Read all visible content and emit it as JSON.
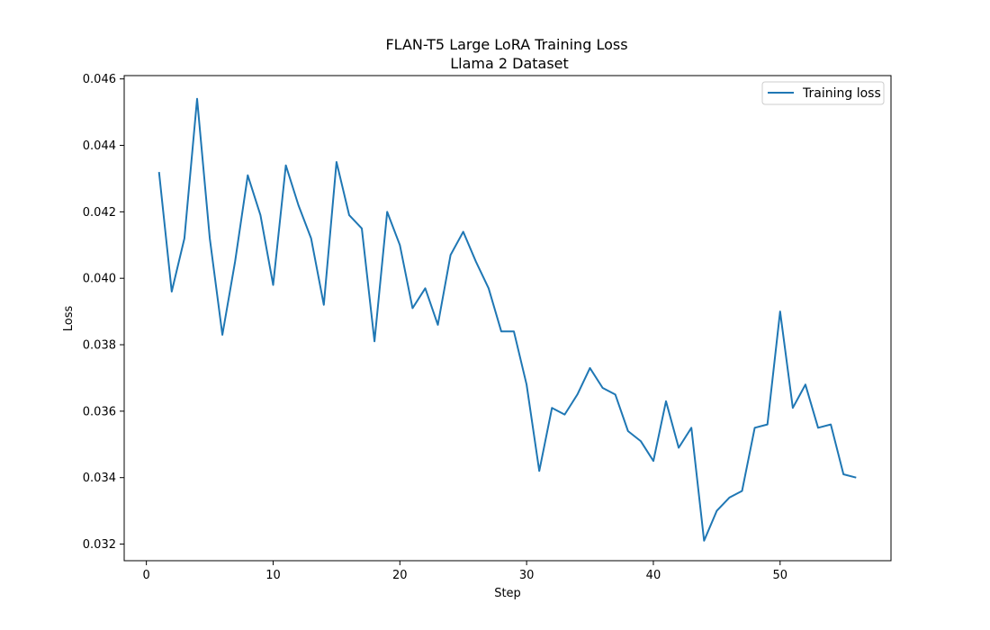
{
  "chart_data": {
    "type": "line",
    "title": "FLAN-T5 Large LoRA Training Loss",
    "subtitle": "Llama 2 Dataset",
    "xlabel": "Step",
    "ylabel": "Loss",
    "xlim": [
      -1.75,
      58.75
    ],
    "ylim": [
      0.0315,
      0.0461
    ],
    "x_ticks": [
      0,
      10,
      20,
      30,
      40,
      50
    ],
    "x_tick_labels": [
      "0",
      "10",
      "20",
      "30",
      "40",
      "50"
    ],
    "y_ticks": [
      0.032,
      0.034,
      0.036,
      0.038,
      0.04,
      0.042,
      0.044,
      0.046
    ],
    "y_tick_labels": [
      "0.032",
      "0.034",
      "0.036",
      "0.038",
      "0.040",
      "0.042",
      "0.044",
      "0.046"
    ],
    "grid": false,
    "legend": {
      "position": "top-right",
      "entries": [
        "Training loss"
      ]
    },
    "series": [
      {
        "name": "Training loss",
        "color": "#1f77b4",
        "x": [
          1,
          2,
          3,
          4,
          5,
          6,
          7,
          8,
          9,
          10,
          11,
          12,
          13,
          14,
          15,
          16,
          17,
          18,
          19,
          20,
          21,
          22,
          23,
          24,
          25,
          26,
          27,
          28,
          29,
          30,
          31,
          32,
          33,
          34,
          35,
          36,
          37,
          38,
          39,
          40,
          41,
          42,
          43,
          44,
          45,
          46,
          47,
          48,
          49,
          50,
          51,
          52,
          53,
          54,
          55,
          56
        ],
        "values": [
          0.0432,
          0.0396,
          0.0412,
          0.0454,
          0.0412,
          0.0383,
          0.0405,
          0.0431,
          0.0419,
          0.0398,
          0.0434,
          0.0422,
          0.0412,
          0.0392,
          0.0435,
          0.0419,
          0.0415,
          0.0381,
          0.042,
          0.041,
          0.0391,
          0.0397,
          0.0386,
          0.0407,
          0.0414,
          0.0405,
          0.0397,
          0.0384,
          0.0384,
          0.0368,
          0.0342,
          0.0361,
          0.0359,
          0.0365,
          0.0373,
          0.0367,
          0.0365,
          0.0354,
          0.0351,
          0.0345,
          0.0363,
          0.0349,
          0.0355,
          0.0321,
          0.033,
          0.0334,
          0.0336,
          0.0355,
          0.0356,
          0.039,
          0.0361,
          0.0368,
          0.0355,
          0.0356,
          0.0341,
          0.034
        ]
      }
    ]
  }
}
